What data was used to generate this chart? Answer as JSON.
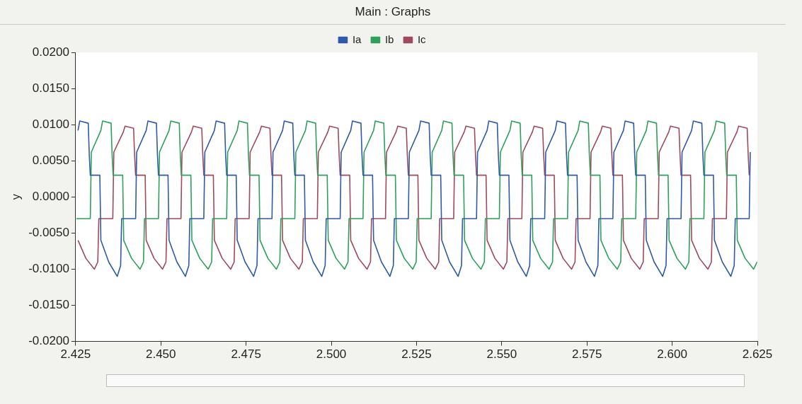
{
  "chart_data": {
    "type": "line",
    "title": "Main : Graphs",
    "ylabel": "y",
    "xlim": [
      2.425,
      2.625
    ],
    "xticks": [
      2.425,
      {
        "value": 2.45,
        "label": "2.450"
      },
      2.475,
      {
        "value": 2.5,
        "label": "2.500"
      },
      2.525,
      {
        "value": 2.55,
        "label": "2.550"
      },
      2.575,
      {
        "value": 2.6,
        "label": "2.600"
      },
      2.625
    ],
    "ylim": [
      -0.02,
      0.02
    ],
    "yticks": [
      {
        "value": -0.02,
        "label": "-0.0200"
      },
      {
        "value": -0.015,
        "label": "-0.0150"
      },
      {
        "value": -0.01,
        "label": "-0.0100"
      },
      {
        "value": -0.005,
        "label": "-0.0050"
      },
      {
        "value": 0,
        "label": "0.0000"
      },
      {
        "value": 0.005,
        "label": "0.0050"
      },
      {
        "value": 0.01,
        "label": "0.0100"
      },
      {
        "value": 0.015,
        "label": "0.0150"
      },
      {
        "value": 0.02,
        "label": "0.0200"
      }
    ],
    "grid": false,
    "legend": "top",
    "marker": "none",
    "line_style": "solid",
    "series": [
      {
        "name": "Ia",
        "color": "#2e5aa8",
        "x": [
          2.4257,
          2.4262,
          2.4287,
          2.429,
          2.4293,
          2.4321,
          2.4324,
          2.4347,
          2.4372,
          2.4382,
          2.4385,
          2.4426,
          2.4429,
          2.4457,
          2.4462,
          2.4487,
          2.449,
          2.4493,
          2.4521,
          2.4524,
          2.4547,
          2.4572,
          2.4582,
          2.4585,
          2.4626,
          2.4629,
          2.4657,
          2.4662,
          2.4687,
          2.469,
          2.4693,
          2.4721,
          2.4724,
          2.4747,
          2.4772,
          2.4782,
          2.4785,
          2.4826,
          2.4829,
          2.4857,
          2.4862,
          2.4887,
          2.489,
          2.4893,
          2.4921,
          2.4924,
          2.4947,
          2.4972,
          2.4982,
          2.4985,
          2.5026,
          2.5029,
          2.5057,
          2.5062,
          2.5087,
          2.509,
          2.5093,
          2.5121,
          2.5124,
          2.5147,
          2.5172,
          2.5182,
          2.5185,
          2.5226,
          2.5229,
          2.5257,
          2.5262,
          2.5287,
          2.529,
          2.5293,
          2.5321,
          2.5324,
          2.5347,
          2.5372,
          2.5382,
          2.5385,
          2.5426,
          2.5429,
          2.5457,
          2.5462,
          2.5487,
          2.549,
          2.5493,
          2.5521,
          2.5524,
          2.5547,
          2.5572,
          2.5582,
          2.5585,
          2.5626,
          2.5629,
          2.5657,
          2.5662,
          2.5687,
          2.569,
          2.5693,
          2.5721,
          2.5724,
          2.5747,
          2.5772,
          2.5782,
          2.5785,
          2.5826,
          2.5829,
          2.5857,
          2.5862,
          2.5887,
          2.589,
          2.5893,
          2.5921,
          2.5924,
          2.5947,
          2.5972,
          2.5982,
          2.5985,
          2.6026,
          2.6029,
          2.6057,
          2.6062,
          2.6087,
          2.609,
          2.6093,
          2.6121,
          2.6124,
          2.6147,
          2.6172,
          2.6182,
          2.6185,
          2.6226,
          2.6229
        ],
        "values": [
          0.0092,
          0.0105,
          0.0102,
          0.0058,
          0.003,
          0.003,
          -0.006,
          -0.009,
          -0.011,
          -0.0095,
          -0.003,
          -0.003,
          0.0062,
          0.0092,
          0.0105,
          0.0102,
          0.0058,
          0.003,
          0.003,
          -0.006,
          -0.009,
          -0.011,
          -0.0095,
          -0.003,
          -0.003,
          0.0062,
          0.0092,
          0.0105,
          0.0102,
          0.0058,
          0.003,
          0.003,
          -0.006,
          -0.009,
          -0.011,
          -0.0095,
          -0.003,
          -0.003,
          0.0062,
          0.0092,
          0.0105,
          0.0102,
          0.0058,
          0.003,
          0.003,
          -0.006,
          -0.009,
          -0.011,
          -0.0095,
          -0.003,
          -0.003,
          0.0062,
          0.0092,
          0.0105,
          0.0102,
          0.0058,
          0.003,
          0.003,
          -0.006,
          -0.009,
          -0.011,
          -0.0095,
          -0.003,
          -0.003,
          0.0062,
          0.0092,
          0.0105,
          0.0102,
          0.0058,
          0.003,
          0.003,
          -0.006,
          -0.009,
          -0.011,
          -0.0095,
          -0.003,
          -0.003,
          0.0062,
          0.0092,
          0.0105,
          0.0102,
          0.0058,
          0.003,
          0.003,
          -0.006,
          -0.009,
          -0.011,
          -0.0095,
          -0.003,
          -0.003,
          0.0062,
          0.0092,
          0.0105,
          0.0102,
          0.0058,
          0.003,
          0.003,
          -0.006,
          -0.009,
          -0.011,
          -0.0095,
          -0.003,
          -0.003,
          0.0062,
          0.0092,
          0.0105,
          0.0102,
          0.0058,
          0.003,
          0.003,
          -0.006,
          -0.009,
          -0.011,
          -0.0095,
          -0.003,
          -0.003,
          0.0062,
          0.0092,
          0.0105,
          0.0102,
          0.0058,
          0.003,
          0.003,
          -0.006,
          -0.009,
          -0.011,
          -0.0095,
          -0.003,
          -0.003,
          0.0062
        ]
      },
      {
        "name": "Ib",
        "color": "#2ea05a",
        "x": [
          2.4252,
          2.4293,
          2.4296,
          2.4324,
          2.4329,
          2.4354,
          2.4357,
          2.436,
          2.4388,
          2.4391,
          2.4414,
          2.4439,
          2.4449,
          2.4452,
          2.4493,
          2.4496,
          2.4524,
          2.4529,
          2.4554,
          2.4557,
          2.456,
          2.4588,
          2.4591,
          2.4614,
          2.4639,
          2.4649,
          2.4652,
          2.4693,
          2.4696,
          2.4724,
          2.4729,
          2.4754,
          2.4757,
          2.476,
          2.4788,
          2.4791,
          2.4814,
          2.4839,
          2.4849,
          2.4852,
          2.4893,
          2.4896,
          2.4924,
          2.4929,
          2.4954,
          2.4957,
          2.496,
          2.4988,
          2.4991,
          2.5014,
          2.5039,
          2.5049,
          2.5052,
          2.5093,
          2.5096,
          2.5124,
          2.5129,
          2.5154,
          2.5157,
          2.516,
          2.5188,
          2.5191,
          2.5214,
          2.5239,
          2.5249,
          2.5252,
          2.5293,
          2.5296,
          2.5324,
          2.5329,
          2.5354,
          2.5357,
          2.536,
          2.5388,
          2.5391,
          2.5414,
          2.5439,
          2.5449,
          2.5452,
          2.5493,
          2.5496,
          2.5524,
          2.5529,
          2.5554,
          2.5557,
          2.556,
          2.5588,
          2.5591,
          2.5614,
          2.5639,
          2.5649,
          2.5652,
          2.5693,
          2.5696,
          2.5724,
          2.5729,
          2.5754,
          2.5757,
          2.576,
          2.5788,
          2.5791,
          2.5814,
          2.5839,
          2.5849,
          2.5852,
          2.5893,
          2.5896,
          2.5924,
          2.5929,
          2.5954,
          2.5957,
          2.596,
          2.5988,
          2.5991,
          2.6014,
          2.6039,
          2.6049,
          2.6052,
          2.6093,
          2.6096,
          2.6124,
          2.6129,
          2.6154,
          2.6157,
          2.616,
          2.6188,
          2.6191,
          2.6214,
          2.6239,
          2.6249
        ],
        "values": [
          -0.003,
          -0.003,
          0.0062,
          0.0092,
          0.0105,
          0.0102,
          0.0058,
          0.003,
          0.003,
          -0.006,
          -0.0085,
          -0.01,
          -0.009,
          -0.003,
          -0.003,
          0.0062,
          0.0092,
          0.0105,
          0.0102,
          0.0058,
          0.003,
          0.003,
          -0.006,
          -0.0085,
          -0.01,
          -0.009,
          -0.003,
          -0.003,
          0.0062,
          0.0092,
          0.0105,
          0.0102,
          0.0058,
          0.003,
          0.003,
          -0.006,
          -0.0085,
          -0.01,
          -0.009,
          -0.003,
          -0.003,
          0.0062,
          0.0092,
          0.0105,
          0.0102,
          0.0058,
          0.003,
          0.003,
          -0.006,
          -0.0085,
          -0.01,
          -0.009,
          -0.003,
          -0.003,
          0.0062,
          0.0092,
          0.0105,
          0.0102,
          0.0058,
          0.003,
          0.003,
          -0.006,
          -0.0085,
          -0.01,
          -0.009,
          -0.003,
          -0.003,
          0.0062,
          0.0092,
          0.0105,
          0.0102,
          0.0058,
          0.003,
          0.003,
          -0.006,
          -0.0085,
          -0.01,
          -0.009,
          -0.003,
          -0.003,
          0.0062,
          0.0092,
          0.0105,
          0.0102,
          0.0058,
          0.003,
          0.003,
          -0.006,
          -0.0085,
          -0.01,
          -0.009,
          -0.003,
          -0.003,
          0.0062,
          0.0092,
          0.0105,
          0.0102,
          0.0058,
          0.003,
          0.003,
          -0.006,
          -0.0085,
          -0.01,
          -0.009,
          -0.003,
          -0.003,
          0.0062,
          0.0092,
          0.0105,
          0.0102,
          0.0058,
          0.003,
          0.003,
          -0.006,
          -0.0085,
          -0.01,
          -0.009,
          -0.003,
          -0.003,
          0.0062,
          0.0092,
          0.0105,
          0.0102,
          0.0058,
          0.003,
          0.003,
          -0.006,
          -0.0085,
          -0.01,
          -0.009
        ]
      },
      {
        "name": "Ic",
        "color": "#9e4a5a",
        "x": [
          2.4257,
          2.428,
          2.4305,
          2.4315,
          2.4318,
          2.4359,
          2.4362,
          2.439,
          2.4395,
          2.442,
          2.4423,
          2.4426,
          2.4454,
          2.4457,
          2.448,
          2.4505,
          2.4515,
          2.4518,
          2.4559,
          2.4562,
          2.459,
          2.4595,
          2.462,
          2.4623,
          2.4626,
          2.4654,
          2.4657,
          2.468,
          2.4705,
          2.4715,
          2.4718,
          2.4759,
          2.4762,
          2.479,
          2.4795,
          2.482,
          2.4823,
          2.4826,
          2.4854,
          2.4857,
          2.488,
          2.4905,
          2.4915,
          2.4918,
          2.4959,
          2.4962,
          2.499,
          2.4995,
          2.502,
          2.5023,
          2.5026,
          2.5054,
          2.5057,
          2.508,
          2.5105,
          2.5115,
          2.5118,
          2.5159,
          2.5162,
          2.519,
          2.5195,
          2.522,
          2.5223,
          2.5226,
          2.5254,
          2.5257,
          2.528,
          2.5305,
          2.5315,
          2.5318,
          2.5359,
          2.5362,
          2.539,
          2.5395,
          2.542,
          2.5423,
          2.5426,
          2.5454,
          2.5457,
          2.548,
          2.5505,
          2.5515,
          2.5518,
          2.5559,
          2.5562,
          2.559,
          2.5595,
          2.562,
          2.5623,
          2.5626,
          2.5654,
          2.5657,
          2.568,
          2.5705,
          2.5715,
          2.5718,
          2.5759,
          2.5762,
          2.579,
          2.5795,
          2.582,
          2.5823,
          2.5826,
          2.5854,
          2.5857,
          2.588,
          2.5905,
          2.5915,
          2.5918,
          2.5959,
          2.5962,
          2.599,
          2.5995,
          2.602,
          2.6023,
          2.6026,
          2.6054,
          2.6057,
          2.608,
          2.6105,
          2.6115,
          2.6118,
          2.6159,
          2.6162,
          2.619,
          2.6195,
          2.622,
          2.6223,
          2.6226
        ],
        "values": [
          -0.006,
          -0.0085,
          -0.01,
          -0.009,
          -0.003,
          -0.003,
          0.0062,
          0.009,
          0.0098,
          0.0095,
          0.0058,
          0.003,
          0.003,
          -0.006,
          -0.0085,
          -0.01,
          -0.009,
          -0.003,
          -0.003,
          0.0062,
          0.009,
          0.0098,
          0.0095,
          0.0058,
          0.003,
          0.003,
          -0.006,
          -0.0085,
          -0.01,
          -0.009,
          -0.003,
          -0.003,
          0.0062,
          0.009,
          0.0098,
          0.0095,
          0.0058,
          0.003,
          0.003,
          -0.006,
          -0.0085,
          -0.01,
          -0.009,
          -0.003,
          -0.003,
          0.0062,
          0.009,
          0.0098,
          0.0095,
          0.0058,
          0.003,
          0.003,
          -0.006,
          -0.0085,
          -0.01,
          -0.009,
          -0.003,
          -0.003,
          0.0062,
          0.009,
          0.0098,
          0.0095,
          0.0058,
          0.003,
          0.003,
          -0.006,
          -0.0085,
          -0.01,
          -0.009,
          -0.003,
          -0.003,
          0.0062,
          0.009,
          0.0098,
          0.0095,
          0.0058,
          0.003,
          0.003,
          -0.006,
          -0.0085,
          -0.01,
          -0.009,
          -0.003,
          -0.003,
          0.0062,
          0.009,
          0.0098,
          0.0095,
          0.0058,
          0.003,
          0.003,
          -0.006,
          -0.0085,
          -0.01,
          -0.009,
          -0.003,
          -0.003,
          0.0062,
          0.009,
          0.0098,
          0.0095,
          0.0058,
          0.003,
          0.003,
          -0.006,
          -0.0085,
          -0.01,
          -0.009,
          -0.003,
          -0.003,
          0.0062,
          0.009,
          0.0098,
          0.0095,
          0.0058,
          0.003,
          0.003,
          -0.006,
          -0.0085,
          -0.01,
          -0.009,
          -0.003,
          -0.003,
          0.0062,
          0.009,
          0.0098,
          0.0095,
          0.0058,
          0.003
        ]
      }
    ]
  }
}
